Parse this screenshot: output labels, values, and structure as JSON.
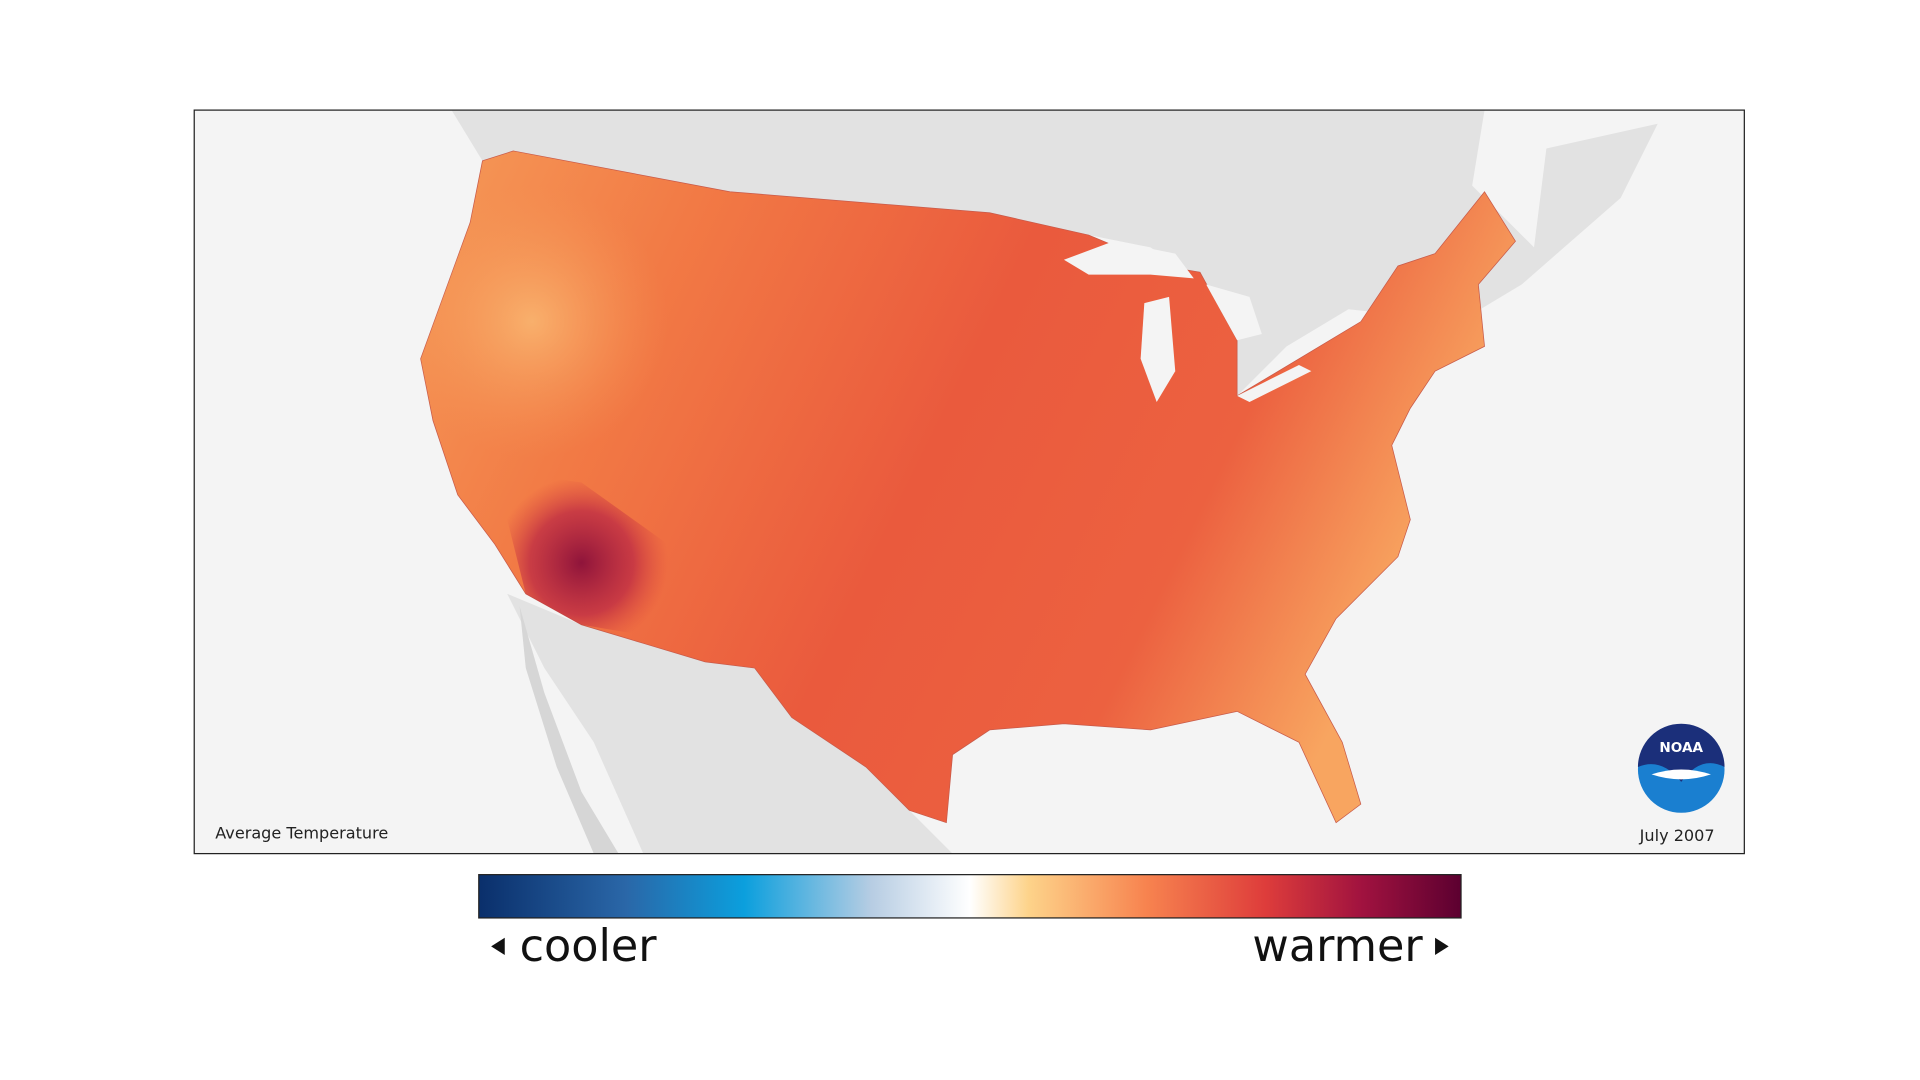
{
  "map": {
    "title": "Average Temperature",
    "date": "July 2007",
    "logo_text": "NOAA"
  },
  "legend": {
    "low_label": "cooler",
    "high_label": "warmer"
  }
}
